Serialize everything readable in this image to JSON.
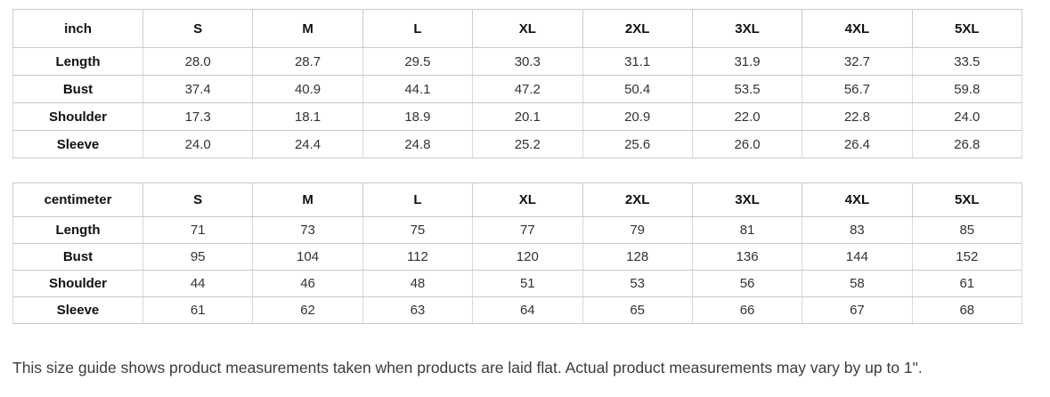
{
  "colors": {
    "background": "#ffffff",
    "border_horizontal": "#c9c9c9",
    "border_vertical": "#dadada",
    "header_text": "#111111",
    "value_text": "#333333",
    "note_text": "#3c3c3c"
  },
  "tables": [
    {
      "unit": "inch",
      "sizes": [
        "S",
        "M",
        "L",
        "XL",
        "2XL",
        "3XL",
        "4XL",
        "5XL"
      ],
      "rows": [
        {
          "label": "Length",
          "values": [
            "28.0",
            "28.7",
            "29.5",
            "30.3",
            "31.1",
            "31.9",
            "32.7",
            "33.5"
          ]
        },
        {
          "label": "Bust",
          "values": [
            "37.4",
            "40.9",
            "44.1",
            "47.2",
            "50.4",
            "53.5",
            "56.7",
            "59.8"
          ]
        },
        {
          "label": "Shoulder",
          "values": [
            "17.3",
            "18.1",
            "18.9",
            "20.1",
            "20.9",
            "22.0",
            "22.8",
            "24.0"
          ]
        },
        {
          "label": "Sleeve",
          "values": [
            "24.0",
            "24.4",
            "24.8",
            "25.2",
            "25.6",
            "26.0",
            "26.4",
            "26.8"
          ]
        }
      ]
    },
    {
      "unit": "centimeter",
      "sizes": [
        "S",
        "M",
        "L",
        "XL",
        "2XL",
        "3XL",
        "4XL",
        "5XL"
      ],
      "rows": [
        {
          "label": "Length",
          "values": [
            "71",
            "73",
            "75",
            "77",
            "79",
            "81",
            "83",
            "85"
          ]
        },
        {
          "label": "Bust",
          "values": [
            "95",
            "104",
            "112",
            "120",
            "128",
            "136",
            "144",
            "152"
          ]
        },
        {
          "label": "Shoulder",
          "values": [
            "44",
            "46",
            "48",
            "51",
            "53",
            "56",
            "58",
            "61"
          ]
        },
        {
          "label": "Sleeve",
          "values": [
            "61",
            "62",
            "63",
            "64",
            "65",
            "66",
            "67",
            "68"
          ]
        }
      ]
    }
  ],
  "footer": {
    "note": "This size guide shows product measurements taken when products are laid flat. Actual product measurements may vary by up to 1\"."
  }
}
